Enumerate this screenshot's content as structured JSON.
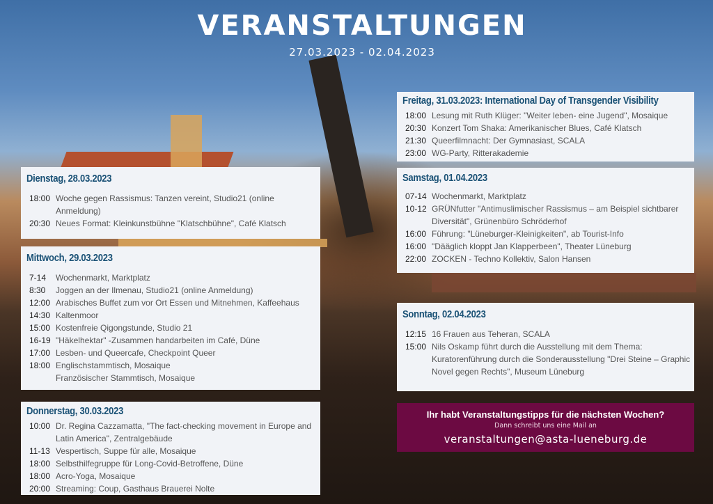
{
  "header": {
    "title": "VERANSTALTUNGEN",
    "dates": "27.03.2023 - 02.04.2023"
  },
  "days": [
    {
      "heading": "Dienstag, 28.03.2023",
      "events": [
        {
          "time": "18:00",
          "text": "Woche gegen Rassismus: Tanzen vereint, Studio21 (online Anmeldung)"
        },
        {
          "time": "20:30",
          "text": "Neues Format: Kleinkunstbühne \"Klatschbühne\", Café Klatsch"
        }
      ]
    },
    {
      "heading": "Mittwoch, 29.03.2023",
      "events": [
        {
          "time": "7-14",
          "text": "Wochenmarkt, Marktplatz"
        },
        {
          "time": "8:30",
          "text": "Joggen an der Ilmenau, Studio21 (online Anmeldung)"
        },
        {
          "time": "12:00",
          "text": "Arabisches Buffet zum vor Ort Essen und Mitnehmen, Kaffeehaus"
        },
        {
          "time": "14:30",
          "text": "Kaltenmoor"
        },
        {
          "time": "15:00",
          "text": "Kostenfreie Qigongstunde, Studio 21"
        },
        {
          "time": "16-19",
          "text": "\"Häkelhektar\" -Zusammen handarbeiten im Café, Düne"
        },
        {
          "time": "17:00",
          "text": "Lesben- und Queercafe, Checkpoint Queer"
        },
        {
          "time": "18:00",
          "text": "Englischstammtisch, Mosaique"
        },
        {
          "time": "",
          "text": "Französischer Stammtisch, Mosaique"
        }
      ]
    },
    {
      "heading": "Donnerstag, 30.03.2023",
      "events": [
        {
          "time": "10:00",
          "text": "Dr. Regina Cazzamatta, \"The fact-checking movement in Europe and Latin America\", Zentralgebäude"
        },
        {
          "time": "11-13",
          "text": "Vespertisch, Suppe für alle, Mosaique"
        },
        {
          "time": "18:00",
          "text": "Selbsthilfegruppe für Long-Covid-Betroffene, Düne"
        },
        {
          "time": "18:00",
          "text": "Acro-Yoga, Mosaique"
        },
        {
          "time": "20:00",
          "text": "Streaming: Coup, Gasthaus Brauerei Nolte"
        }
      ]
    },
    {
      "heading": "Freitag, 31.03.2023: International Day of Transgender Visibility",
      "events": [
        {
          "time": "18:00",
          "text": "Lesung mit Ruth Klüger: \"Weiter leben- eine Jugend\", Mosaique"
        },
        {
          "time": "20:30",
          "text": "Konzert Tom Shaka: Amerikanischer Blues, Café Klatsch"
        },
        {
          "time": "21:30",
          "text": "Queerfilmnacht: Der Gymnasiast, SCALA"
        },
        {
          "time": "23:00",
          "text": "WG-Party, Ritterakademie"
        }
      ]
    },
    {
      "heading": "Samstag, 01.04.2023",
      "events": [
        {
          "time": "07-14",
          "text": "Wochenmarkt, Marktplatz"
        },
        {
          "time": "10-12",
          "text": "GRÜNfutter \"Antimuslimischer Rassismus – am Beispiel sichtbarer Diversität\", Grünenbüro Schröderhof"
        },
        {
          "time": "16:00",
          "text": "Führung: \"Lüneburger-Kleinigkeiten\", ab Tourist-Info"
        },
        {
          "time": "16:00",
          "text": "\"Dääglich kloppt Jan Klapperbeen\", Theater Lüneburg"
        },
        {
          "time": "22:00",
          "text": "ZOCKEN - Techno Kollektiv, Salon Hansen"
        }
      ]
    },
    {
      "heading": "Sonntag, 02.04.2023",
      "events": [
        {
          "time": "12:15",
          "text": "16 Frauen aus Teheran, SCALA"
        },
        {
          "time": "15:00",
          "text": "Nils Oskamp führt durch die Ausstellung mit dem Thema: Kuratorenführung durch die Sonderausstellung \"Drei Steine – Graphic Novel gegen Rechts\", Museum Lüneburg"
        }
      ]
    }
  ],
  "cta": {
    "headline": "Ihr habt Veranstaltungstipps für die nächsten Wochen?",
    "subline": "Dann schreibt uns eine Mail an",
    "email": "veranstaltungen@asta-lueneburg.de"
  },
  "colors": {
    "heading": "#1b5276",
    "cta_bg": "#6c0a42",
    "box_bg": "#f1f3f7"
  }
}
